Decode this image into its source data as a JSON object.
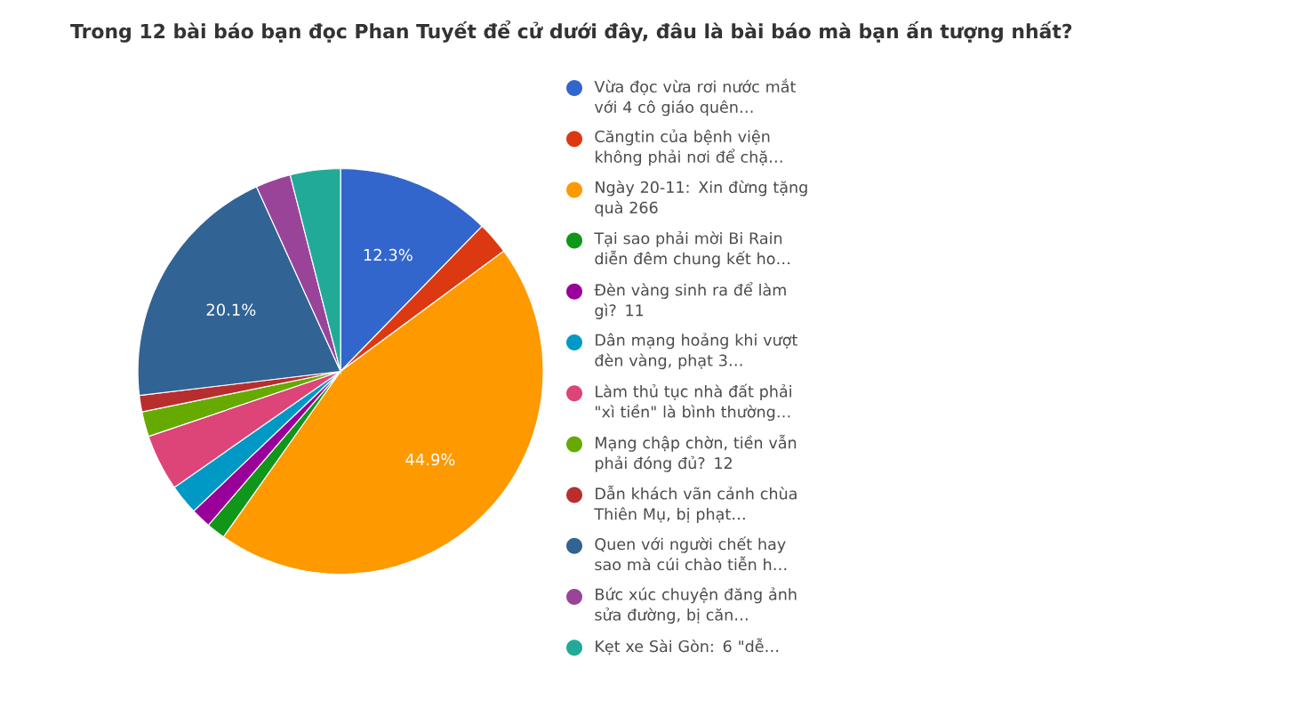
{
  "chart_data": {
    "type": "pie",
    "title": "Trong 12 bài báo bạn đọc Phan Tuyết để cử dưới đây, đâu là bài báo mà bạn ấn tượng nhất?",
    "categories": [
      "Vừa đọc vừa rơi nước mắt với 4 cô giáo quên…",
      "Căngtin của bệnh viện không phải nơi để chặ…",
      "Ngày 20-11: Xin đừng tặng quà 266",
      "Tại sao phải mời Bi Rain diễn đêm chung kết ho…",
      "Đèn vàng sinh ra để làm gì? 11",
      "Dân mạng hoảng khi vượt đèn vàng, phạt 3…",
      "Làm thủ tục nhà đất phải \"xì tiền\" là bình thường…",
      "Mạng chập chờn, tiền vẫn phải đóng đủ? 12",
      "Dẫn khách vãn cảnh chùa Thiên Mụ, bị phạt…",
      "Quen với người chết hay sao mà cúi chào tiễn h…",
      "Bức xúc chuyện đăng ảnh sửa đường, bị căn…",
      "Kẹt xe Sài Gòn: 6 \"dễ…"
    ],
    "values": [
      12.3,
      2.6,
      44.9,
      1.5,
      1.6,
      2.4,
      4.5,
      2.0,
      1.3,
      20.1,
      2.8,
      4.0
    ],
    "colors": [
      "#3366cc",
      "#dc3912",
      "#ff9900",
      "#109618",
      "#990099",
      "#0099c6",
      "#dd4477",
      "#66aa00",
      "#b82e2e",
      "#316395",
      "#994499",
      "#22aa99"
    ],
    "value_labels": [
      "12.3%",
      null,
      "44.9%",
      null,
      null,
      null,
      null,
      null,
      null,
      "20.1%",
      null,
      null
    ],
    "legend": "right"
  }
}
